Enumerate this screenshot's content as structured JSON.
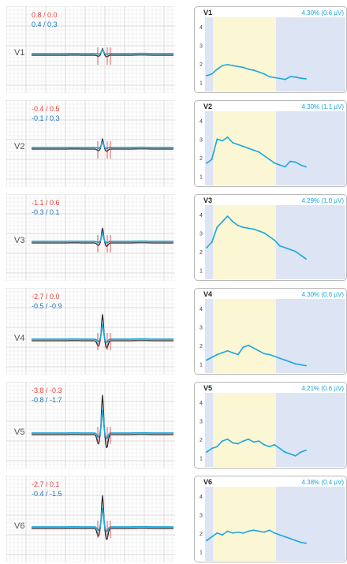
{
  "colors": {
    "measure_red": "#e8423c",
    "measure_blue": "#1f6fb8",
    "trace_current": "#1aa7dd",
    "trace_reference": "#222222",
    "grid_minor": "#e6e6e6",
    "grid_major": "#cfcfcf",
    "trend_baseline_band": "#dde4f4",
    "trend_yellow_band": "#fbf6d4",
    "trend_line": "#1aa7dd",
    "trend_header": "#1aa7dd"
  },
  "chart_data": [
    {
      "type": "line",
      "lead": "V1",
      "meas_red": "0.8 / 0.0",
      "meas_blue": "0.4 / 0.3",
      "stat": "4.30% (0.6 µV)",
      "ylim": [
        0.5,
        4.5
      ],
      "yticks": [
        "1",
        "2",
        "3",
        "4"
      ],
      "values": [
        1.35,
        1.45,
        1.7,
        1.9,
        1.95,
        1.9,
        1.85,
        1.8,
        1.7,
        1.65,
        1.55,
        1.45,
        1.3,
        1.25,
        1.2,
        1.15,
        1.3,
        1.28,
        1.22,
        1.18
      ]
    },
    {
      "type": "line",
      "lead": "V2",
      "meas_red": "-0.4 / 0.5",
      "meas_blue": "-0.1 / 0.3",
      "stat": "4.30% (1.1 µV)",
      "ylim": [
        0.5,
        4.5
      ],
      "yticks": [
        "1",
        "2",
        "3",
        "4"
      ],
      "values": [
        1.7,
        1.9,
        3.0,
        2.9,
        3.1,
        2.8,
        2.7,
        2.6,
        2.5,
        2.4,
        2.3,
        2.1,
        1.9,
        1.7,
        1.6,
        1.5,
        1.8,
        1.75,
        1.6,
        1.5
      ]
    },
    {
      "type": "line",
      "lead": "V3",
      "meas_red": "-1.1 / 0.6",
      "meas_blue": "-0.3 / 0.1",
      "stat": "4.29% (1.0 µV)",
      "ylim": [
        0.5,
        4.5
      ],
      "yticks": [
        "1",
        "2",
        "3",
        "4"
      ],
      "values": [
        2.2,
        2.5,
        3.3,
        3.6,
        3.9,
        3.6,
        3.4,
        3.3,
        3.25,
        3.2,
        3.1,
        3.0,
        2.8,
        2.6,
        2.3,
        2.2,
        2.1,
        2.0,
        1.8,
        1.6
      ]
    },
    {
      "type": "line",
      "lead": "V4",
      "meas_red": "-2.7 / 0.0",
      "meas_blue": "-0.5 / -0.9",
      "stat": "4.30% (0.6 µV)",
      "ylim": [
        0.5,
        4.5
      ],
      "yticks": [
        "1",
        "2",
        "3",
        "4"
      ],
      "values": [
        1.2,
        1.35,
        1.5,
        1.6,
        1.7,
        1.6,
        1.5,
        1.9,
        2.0,
        1.85,
        1.7,
        1.55,
        1.5,
        1.4,
        1.3,
        1.2,
        1.1,
        1.0,
        0.95,
        0.9
      ]
    },
    {
      "type": "line",
      "lead": "V5",
      "meas_red": "-3.8 / -0.3",
      "meas_blue": "-0.8 / -1.7",
      "stat": "4.21% (0.6 µV)",
      "ylim": [
        0.5,
        4.5
      ],
      "yticks": [
        "1",
        "2",
        "3",
        "4"
      ],
      "values": [
        1.3,
        1.5,
        1.6,
        1.9,
        2.0,
        1.8,
        1.75,
        1.9,
        2.0,
        1.85,
        1.9,
        1.7,
        1.6,
        1.7,
        1.5,
        1.3,
        1.2,
        1.1,
        1.3,
        1.4
      ]
    },
    {
      "type": "line",
      "lead": "V6",
      "meas_red": "-2.7 / 0.1",
      "meas_blue": "-0.4 / -1.5",
      "stat": "4.38% (0.4 µV)",
      "ylim": [
        0.5,
        4.5
      ],
      "yticks": [
        "1",
        "2",
        "3",
        "4"
      ],
      "values": [
        1.6,
        1.8,
        2.0,
        1.9,
        2.1,
        2.0,
        2.05,
        2.0,
        2.1,
        2.15,
        2.1,
        2.05,
        2.15,
        2.0,
        1.9,
        1.8,
        1.7,
        1.6,
        1.5,
        1.45
      ]
    }
  ]
}
